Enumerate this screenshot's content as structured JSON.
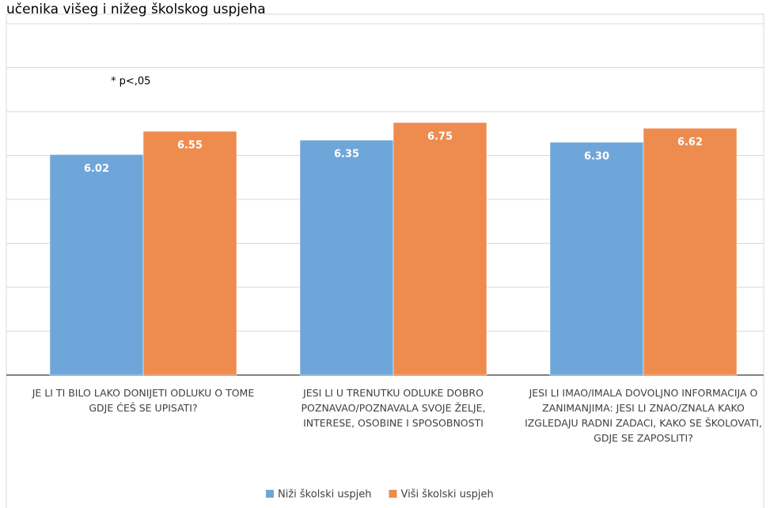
{
  "chart_data": {
    "type": "bar",
    "title": "učenika višeg i nižeg školskog uspjeha",
    "annotation": "* p<,05",
    "categories": [
      "JE LI TI BILO LAKO DONIJETI ODLUKU O TOME GDJE ĆEŠ SE UPISATI?",
      "JESI LI U TRENUTKU ODLUKE DOBRO POZNAVAO/POZNAVALA SVOJE ŽELJE, INTERESE, OSOBINE I SPOSOBNOSTI",
      "JESI LI IMAO/IMALA DOVOLJNO INFORMACIJA O ZANIMANJIMA: JESI LI ZNAO/ZNALA KAKO IZGLEDAJU RADNI ZADACI, KAKO SE ŠKOLOVATI, GDJE SE ZAPOSLITI?"
    ],
    "series": [
      {
        "name": "Niži školski uspjeh",
        "color": "#6fa6d9",
        "values": [
          6.02,
          6.35,
          6.3
        ],
        "value_labels": [
          "6.02",
          "6.35",
          "6.30"
        ]
      },
      {
        "name": "Viši školski uspjeh",
        "color": "#ee8c4f",
        "values": [
          6.55,
          6.75,
          6.62
        ],
        "value_labels": [
          "6.55",
          "6.75",
          "6.62"
        ]
      }
    ],
    "ylim": [
      1,
      9
    ],
    "yticks": [
      1,
      2,
      3,
      4,
      5,
      6,
      7,
      8,
      9
    ],
    "grid": true,
    "show_tick_labels": false,
    "legend": "bottom"
  }
}
